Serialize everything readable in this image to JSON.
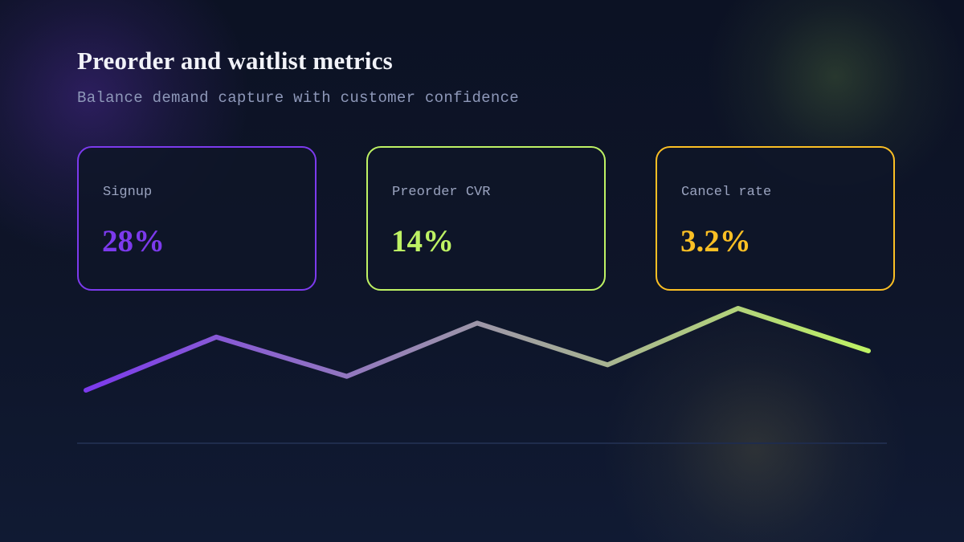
{
  "header": {
    "title": "Preorder and waitlist metrics",
    "subtitle": "Balance demand capture with customer confidence"
  },
  "cards": [
    {
      "label": "Signup",
      "value": "28%",
      "color": "#7c3aed"
    },
    {
      "label": "Preorder CVR",
      "value": "14%",
      "color": "#bef264"
    },
    {
      "label": "Cancel rate",
      "value": "3.2%",
      "color": "#fbbf24"
    }
  ],
  "chart_data": {
    "type": "line",
    "series": [
      {
        "values": [
          0.0,
          0.65,
          0.17,
          0.82,
          0.31,
          1.0,
          0.48
        ]
      }
    ],
    "gradient_colors": [
      "#7c3aed",
      "#bef264"
    ],
    "baseline_color": "#1f2c4c",
    "axes": false,
    "grid": false
  }
}
